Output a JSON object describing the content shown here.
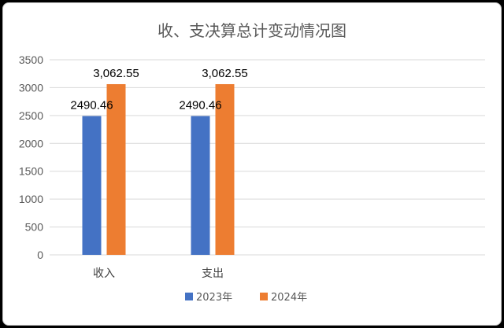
{
  "chart_data": {
    "type": "bar",
    "title": "收、支决算总计变动情况图",
    "categories": [
      "收入",
      "支出"
    ],
    "series": [
      {
        "name": "2023年",
        "values": [
          2490.46,
          2490.46
        ],
        "labels": [
          "2490.46",
          "2490.46"
        ],
        "color": "#4472c4"
      },
      {
        "name": "2024年",
        "values": [
          3062.55,
          3062.55
        ],
        "labels": [
          "3,062.55",
          "3,062.55"
        ],
        "color": "#ed7d31"
      }
    ],
    "ylim": [
      0,
      3500
    ],
    "yticks": [
      0,
      500,
      1000,
      1500,
      2000,
      2500,
      3000,
      3500
    ],
    "xlabel": "",
    "ylabel": "",
    "grid": true,
    "legend_position": "bottom"
  }
}
